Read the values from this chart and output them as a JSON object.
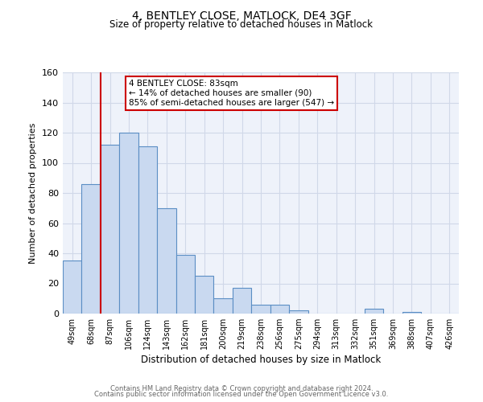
{
  "title1": "4, BENTLEY CLOSE, MATLOCK, DE4 3GF",
  "title2": "Size of property relative to detached houses in Matlock",
  "xlabel": "Distribution of detached houses by size in Matlock",
  "ylabel": "Number of detached properties",
  "bin_labels": [
    "49sqm",
    "68sqm",
    "87sqm",
    "106sqm",
    "124sqm",
    "143sqm",
    "162sqm",
    "181sqm",
    "200sqm",
    "219sqm",
    "238sqm",
    "256sqm",
    "275sqm",
    "294sqm",
    "313sqm",
    "332sqm",
    "351sqm",
    "369sqm",
    "388sqm",
    "407sqm",
    "426sqm"
  ],
  "bar_heights": [
    35,
    86,
    112,
    120,
    111,
    70,
    39,
    25,
    10,
    17,
    6,
    6,
    2,
    0,
    0,
    0,
    3,
    0,
    1,
    0,
    0
  ],
  "bar_color": "#c9d9f0",
  "bar_edge_color": "#5b8ec4",
  "vline_index": 2,
  "vline_color": "#cc0000",
  "annotation_line1": "4 BENTLEY CLOSE: 83sqm",
  "annotation_line2": "← 14% of detached houses are smaller (90)",
  "annotation_line3": "85% of semi-detached houses are larger (547) →",
  "ylim": [
    0,
    160
  ],
  "yticks": [
    0,
    20,
    40,
    60,
    80,
    100,
    120,
    140,
    160
  ],
  "footer1": "Contains HM Land Registry data © Crown copyright and database right 2024.",
  "footer2": "Contains public sector information licensed under the Open Government Licence v3.0.",
  "grid_color": "#d0d8e8",
  "background_color": "#eef2fa"
}
